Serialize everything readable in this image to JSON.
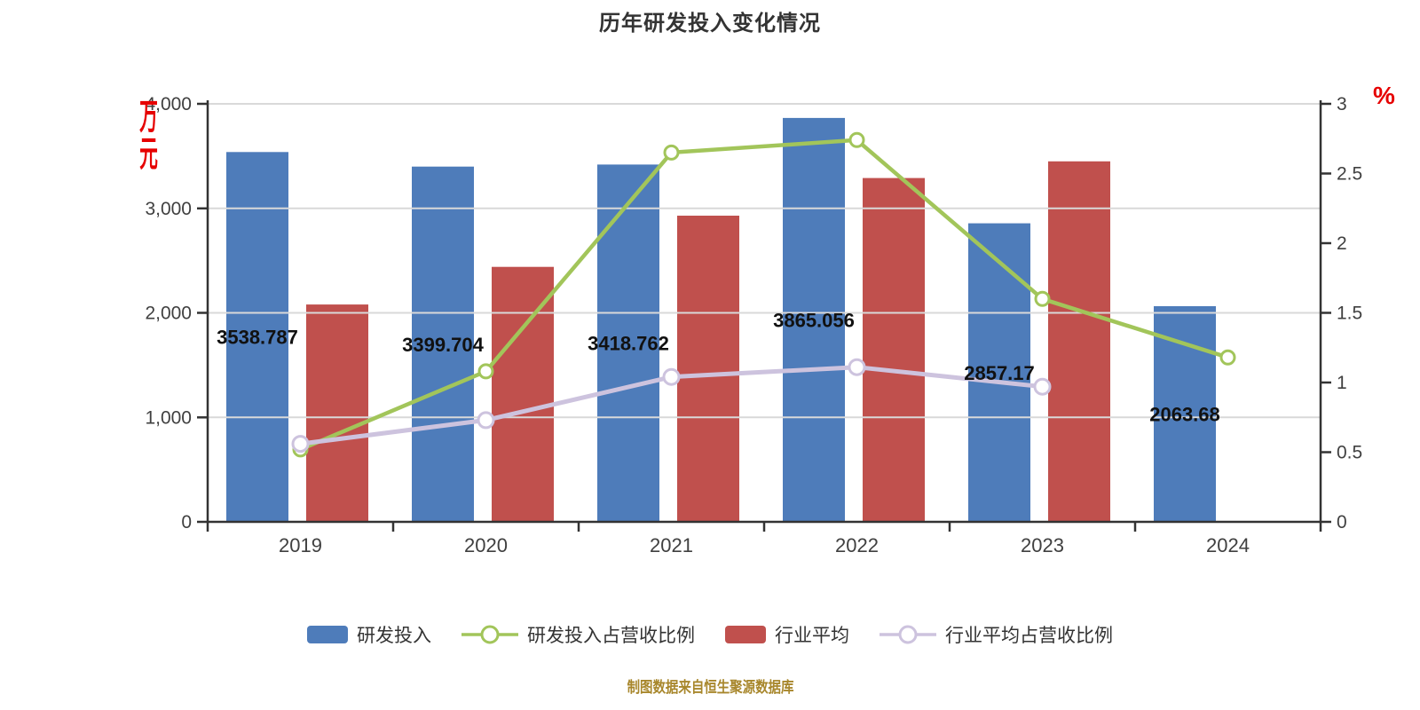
{
  "page": {
    "title": "历年研发投入变化情况",
    "footer": "制图数据来自恒生聚源数据库",
    "left_axis_unit": "万元",
    "right_axis_unit": "%"
  },
  "colors": {
    "title": "#333333",
    "axis_line": "#333333",
    "gridline": "#d9d9d9",
    "tick_text": "#404040",
    "data_label": "#111111",
    "unit_text": "#e60000",
    "footer_text": "#a8872c",
    "bar_blue": "#4e7cba",
    "bar_red": "#c0504d",
    "line_green": "#a2c55a",
    "line_lavender": "#cdc3de"
  },
  "chart_data": {
    "type": "bar+line combo",
    "title": "历年研发投入变化情况",
    "grid": "horizontal gridlines on, drawn over bars",
    "legend_position": "bottom center",
    "categories": [
      "2019",
      "2020",
      "2021",
      "2022",
      "2023",
      "2024"
    ],
    "left_axis": {
      "unit": "万元",
      "min": 0,
      "max": 4000,
      "tick_step": 1000,
      "tick_labels": [
        "0",
        "1,000",
        "2,000",
        "3,000",
        "4,000"
      ]
    },
    "right_axis": {
      "unit": "%",
      "min": 0,
      "max": 3,
      "tick_step": 0.5,
      "tick_labels": [
        "0",
        "0.5",
        "1",
        "1.5",
        "2",
        "2.5",
        "3"
      ]
    },
    "series": [
      {
        "key": "rd_investment",
        "name": "研发投入",
        "type": "bar",
        "axis": "left",
        "color": "#4e7cba",
        "values": [
          3538.787,
          3399.704,
          3418.762,
          3865.056,
          2857.17,
          2063.68
        ],
        "data_labels": [
          "3538.787",
          "3399.704",
          "3418.762",
          "3865.056",
          "2857.17",
          "2063.68"
        ]
      },
      {
        "key": "rd_revenue_ratio",
        "name": "研发投入占营收比例",
        "type": "line",
        "axis": "right",
        "color": "#a2c55a",
        "marker": "white-circle",
        "values": [
          0.52,
          1.08,
          2.65,
          2.74,
          1.6,
          1.18
        ]
      },
      {
        "key": "industry_avg",
        "name": "行业平均",
        "type": "bar",
        "axis": "left",
        "color": "#c0504d",
        "values": [
          2080,
          2440,
          2930,
          3290,
          3450,
          null
        ],
        "data_labels": [
          null,
          null,
          null,
          null,
          null,
          null
        ]
      },
      {
        "key": "industry_avg_revenue_ratio",
        "name": "行业平均占营收比例",
        "type": "line",
        "axis": "right",
        "color": "#cdc3de",
        "marker": "white-circle",
        "values": [
          0.56,
          0.73,
          1.04,
          1.11,
          0.97,
          null
        ]
      }
    ]
  }
}
